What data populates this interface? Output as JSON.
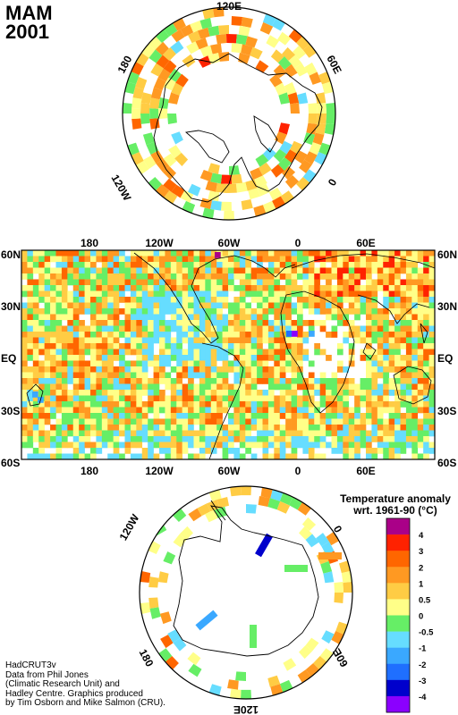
{
  "title": {
    "season": "MAM",
    "year": "2001"
  },
  "colors": {
    "palette": [
      "#8b00ff",
      "#0000cc",
      "#1f6fff",
      "#3aa8ff",
      "#66ddff",
      "#66ee66",
      "#ffff88",
      "#ffcc44",
      "#ff9922",
      "#ff6600",
      "#ff2200",
      "#aa0088"
    ],
    "land": "#ffffff",
    "coast": "#000000",
    "frame": "#000000",
    "ocean_gap": "#ffffff"
  },
  "north_polar": {
    "labels": {
      "top": "120E",
      "top_left": "180",
      "top_right": "60E",
      "left": "120W",
      "right": "0"
    }
  },
  "main_map": {
    "top_lon_labels": [
      "180",
      "120W",
      "60W",
      "0",
      "60E"
    ],
    "bottom_lon_labels": [
      "180",
      "120W",
      "60W",
      "0",
      "60E"
    ],
    "left_lat_labels": [
      "60N",
      "30N",
      "EQ",
      "30S",
      "60S"
    ],
    "right_lat_labels": [
      "60N",
      "30N",
      "EQ",
      "30S",
      "60S"
    ]
  },
  "south_polar": {
    "labels": {
      "left": "120W",
      "right": "0",
      "bottom_left": "180",
      "bottom_right": "60E",
      "bottom": "120E"
    }
  },
  "legend": {
    "title_line1": "Temperature anomaly",
    "title_line2": "wrt. 1961-90  (°C)",
    "ticks": [
      "4",
      "3",
      "2",
      "1",
      "0.5",
      "0",
      "-0.5",
      "-1",
      "-2",
      "-3",
      "-4"
    ],
    "colors_top_to_bottom": [
      "#aa0088",
      "#ff2200",
      "#ff6600",
      "#ff9922",
      "#ffcc44",
      "#ffff88",
      "#66ee66",
      "#66ddff",
      "#3aa8ff",
      "#1f6fff",
      "#0000cc",
      "#8b00ff"
    ]
  },
  "credits": [
    "HadCRUT3v",
    "Data from Phil Jones",
    "(Climatic Research Unit) and",
    "Hadley Centre.  Graphics produced",
    "by Tim Osborn and Mike Salmon (CRU)."
  ]
}
